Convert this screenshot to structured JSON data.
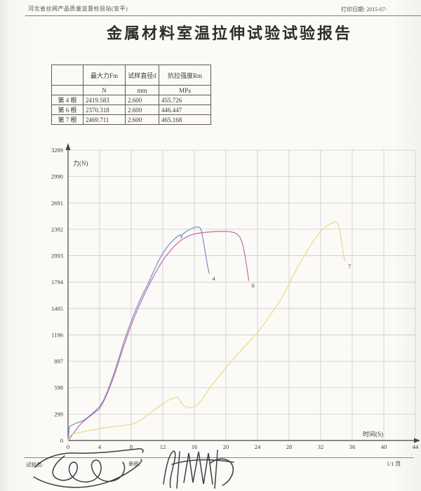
{
  "header": {
    "org": "河北省丝网产品质量监督检验站(安平)",
    "print_date": "打印日期: 2015-07-"
  },
  "title": "金属材料室温拉伸试验试验报告",
  "table": {
    "columns": [
      "",
      "最大力Fm",
      "试样直径d",
      "抗拉强度Rm"
    ],
    "units": [
      "",
      "N",
      "mm",
      "MPa"
    ],
    "rows": [
      [
        "第 4 根",
        "2419.583",
        "2.600",
        "455.726"
      ],
      [
        "第 6 根",
        "2370.318",
        "2.600",
        "446.447"
      ],
      [
        "第 7 根",
        "2469.711",
        "2.600",
        "465.168"
      ]
    ]
  },
  "chart_data": {
    "type": "line",
    "title": "",
    "xlabel": "时间(S)",
    "ylabel": "力(N)",
    "xlim": [
      0,
      44
    ],
    "ylim": [
      0,
      3289
    ],
    "xticks": [
      0,
      4,
      8,
      12,
      16,
      20,
      24,
      28,
      32,
      36,
      40,
      44
    ],
    "yticks": [
      0,
      299,
      598,
      897,
      1196,
      1495,
      1794,
      2093,
      2392,
      2691,
      2990,
      3289
    ],
    "grid": true,
    "legend_position": "curve-end-labels",
    "series": [
      {
        "name": "4",
        "color": "#7590c4",
        "max_force_N": 2419.583,
        "points": [
          [
            0,
            0
          ],
          [
            0.15,
            155
          ],
          [
            0.5,
            175
          ],
          [
            1,
            195
          ],
          [
            1.5,
            210
          ],
          [
            2,
            230
          ],
          [
            2.5,
            262
          ],
          [
            3,
            300
          ],
          [
            3.5,
            340
          ],
          [
            4,
            385
          ],
          [
            4.5,
            455
          ],
          [
            5,
            560
          ],
          [
            5.5,
            680
          ],
          [
            6,
            810
          ],
          [
            6.5,
            950
          ],
          [
            7,
            1100
          ],
          [
            7.5,
            1230
          ],
          [
            8,
            1350
          ],
          [
            8.5,
            1465
          ],
          [
            9,
            1570
          ],
          [
            9.5,
            1665
          ],
          [
            10,
            1750
          ],
          [
            10.5,
            1850
          ],
          [
            11,
            1950
          ],
          [
            11.5,
            2040
          ],
          [
            12,
            2120
          ],
          [
            12.5,
            2185
          ],
          [
            13,
            2240
          ],
          [
            13.5,
            2285
          ],
          [
            14,
            2320
          ],
          [
            14.25,
            2330
          ],
          [
            14.35,
            2295
          ],
          [
            14.5,
            2335
          ],
          [
            15,
            2370
          ],
          [
            15.5,
            2395
          ],
          [
            16,
            2413
          ],
          [
            16.4,
            2420
          ],
          [
            16.7,
            2412
          ],
          [
            16.9,
            2372
          ],
          [
            17.1,
            2280
          ],
          [
            17.4,
            2120
          ],
          [
            17.7,
            1960
          ],
          [
            17.9,
            1890
          ]
        ]
      },
      {
        "name": "6",
        "color": "#c468a6",
        "max_force_N": 2370.318,
        "points": [
          [
            0,
            0
          ],
          [
            0.3,
            35
          ],
          [
            0.7,
            85
          ],
          [
            1.2,
            145
          ],
          [
            1.7,
            195
          ],
          [
            2.2,
            235
          ],
          [
            2.7,
            270
          ],
          [
            3.2,
            305
          ],
          [
            3.7,
            340
          ],
          [
            4,
            360
          ],
          [
            4.5,
            440
          ],
          [
            5,
            540
          ],
          [
            5.5,
            655
          ],
          [
            6,
            775
          ],
          [
            6.5,
            915
          ],
          [
            7,
            1055
          ],
          [
            7.5,
            1185
          ],
          [
            8,
            1305
          ],
          [
            8.5,
            1420
          ],
          [
            9,
            1525
          ],
          [
            9.5,
            1625
          ],
          [
            10,
            1715
          ],
          [
            10.5,
            1805
          ],
          [
            11,
            1890
          ],
          [
            11.5,
            1965
          ],
          [
            12,
            2040
          ],
          [
            12.5,
            2100
          ],
          [
            13,
            2155
          ],
          [
            13.5,
            2205
          ],
          [
            14,
            2245
          ],
          [
            14.5,
            2280
          ],
          [
            15,
            2305
          ],
          [
            15.5,
            2325
          ],
          [
            16,
            2340
          ],
          [
            17,
            2355
          ],
          [
            18,
            2363
          ],
          [
            19,
            2368
          ],
          [
            20,
            2368
          ],
          [
            20.5,
            2365
          ],
          [
            21,
            2355
          ],
          [
            21.4,
            2338
          ],
          [
            21.8,
            2300
          ],
          [
            22.1,
            2230
          ],
          [
            22.4,
            2100
          ],
          [
            22.7,
            1930
          ],
          [
            22.9,
            1810
          ]
        ]
      },
      {
        "name": "7",
        "color": "#e4dd82",
        "max_force_N": 2469.711,
        "points": [
          [
            0,
            0
          ],
          [
            0.2,
            55
          ],
          [
            0.7,
            75
          ],
          [
            1.5,
            92
          ],
          [
            2.5,
            110
          ],
          [
            3.5,
            127
          ],
          [
            4.5,
            142
          ],
          [
            5.5,
            155
          ],
          [
            6.5,
            165
          ],
          [
            7.5,
            175
          ],
          [
            8,
            182
          ],
          [
            8.5,
            198
          ],
          [
            9,
            220
          ],
          [
            9.5,
            248
          ],
          [
            10,
            280
          ],
          [
            10.5,
            315
          ],
          [
            11,
            350
          ],
          [
            11.5,
            385
          ],
          [
            12,
            418
          ],
          [
            12.5,
            447
          ],
          [
            13,
            468
          ],
          [
            13.5,
            484
          ],
          [
            13.9,
            492
          ],
          [
            14.1,
            462
          ],
          [
            14.4,
            415
          ],
          [
            14.8,
            385
          ],
          [
            15.2,
            372
          ],
          [
            15.7,
            373
          ],
          [
            16.2,
            390
          ],
          [
            16.7,
            435
          ],
          [
            17.2,
            495
          ],
          [
            17.7,
            560
          ],
          [
            18.2,
            625
          ],
          [
            19,
            715
          ],
          [
            20,
            825
          ],
          [
            21,
            930
          ],
          [
            22,
            1030
          ],
          [
            23,
            1125
          ],
          [
            24,
            1220
          ],
          [
            25,
            1340
          ],
          [
            26,
            1470
          ],
          [
            27,
            1600
          ],
          [
            28,
            1775
          ],
          [
            29,
            1950
          ],
          [
            30,
            2100
          ],
          [
            31,
            2250
          ],
          [
            32,
            2370
          ],
          [
            32.7,
            2425
          ],
          [
            33.3,
            2458
          ],
          [
            33.9,
            2473
          ],
          [
            34.15,
            2462
          ],
          [
            34.35,
            2410
          ],
          [
            34.55,
            2310
          ],
          [
            34.75,
            2190
          ],
          [
            34.95,
            2080
          ],
          [
            35.1,
            2030
          ]
        ]
      }
    ]
  },
  "footer": {
    "operator_label": "试验员:",
    "reviewer_label": "审核:",
    "page_number": "1/1 页"
  },
  "colors": {
    "grid": "#c8c9ce",
    "axis": "#454545",
    "tick_text": "#3c3c3c"
  }
}
